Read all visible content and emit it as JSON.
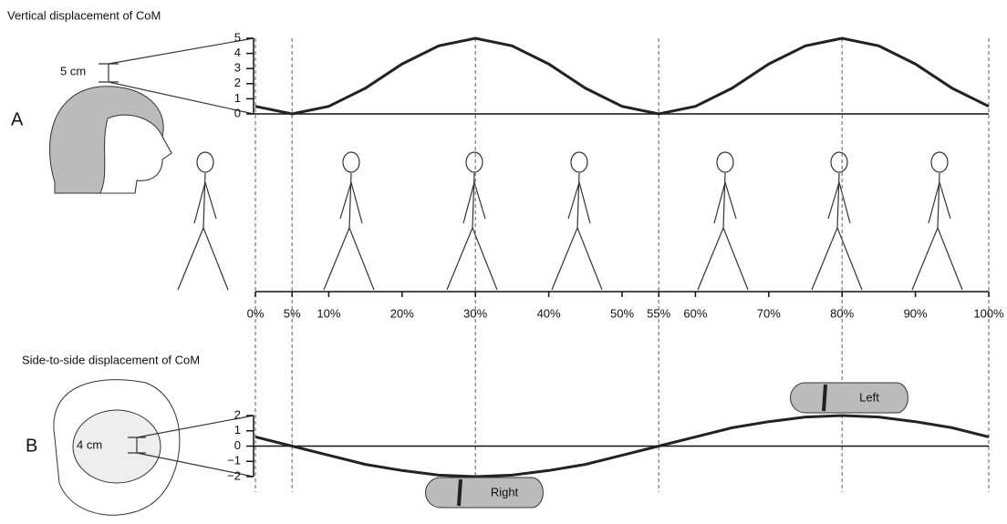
{
  "chart_data": [
    {
      "type": "line",
      "title": "Vertical displacement of CoM",
      "panel": "A",
      "scale_label": "5 cm",
      "x": [
        0,
        5,
        10,
        15,
        20,
        25,
        30,
        35,
        40,
        45,
        50,
        55,
        60,
        65,
        70,
        75,
        80,
        85,
        90,
        95,
        100
      ],
      "values": [
        0.5,
        0,
        0.5,
        1.7,
        3.3,
        4.5,
        5,
        4.5,
        3.3,
        1.7,
        0.5,
        0,
        0.5,
        1.7,
        3.3,
        4.5,
        5,
        4.5,
        3.3,
        1.7,
        0.5
      ],
      "color": "#222222",
      "xlim": [
        0,
        100
      ],
      "xticks": [
        {
          "value": 0,
          "label": "0%"
        },
        {
          "value": 5,
          "label": "5%"
        },
        {
          "value": 10,
          "label": "10%"
        },
        {
          "value": 20,
          "label": "20%"
        },
        {
          "value": 30,
          "label": "30%"
        },
        {
          "value": 40,
          "label": "40%"
        },
        {
          "value": 50,
          "label": "50%"
        },
        {
          "value": 55,
          "label": "55%"
        },
        {
          "value": 60,
          "label": "60%"
        },
        {
          "value": 70,
          "label": "70%"
        },
        {
          "value": 80,
          "label": "80%"
        },
        {
          "value": 90,
          "label": "90%"
        },
        {
          "value": 100,
          "label": "100%"
        }
      ],
      "ylim": [
        0,
        5
      ],
      "yticks": [
        0,
        1,
        2,
        3,
        4,
        5
      ],
      "guide_lines": [
        0,
        5,
        30,
        55,
        80,
        100
      ]
    },
    {
      "type": "line",
      "title": "Side-to-side displacement of CoM",
      "panel": "B",
      "scale_label": "4 cm",
      "x": [
        0,
        5,
        10,
        15,
        20,
        25,
        30,
        35,
        40,
        45,
        50,
        55,
        60,
        65,
        70,
        75,
        80,
        85,
        90,
        95,
        100
      ],
      "values": [
        0.6,
        0,
        -0.6,
        -1.2,
        -1.6,
        -1.9,
        -2,
        -1.9,
        -1.6,
        -1.2,
        -0.6,
        0,
        0.6,
        1.2,
        1.6,
        1.9,
        2,
        1.9,
        1.6,
        1.2,
        0.6
      ],
      "color": "#222222",
      "xlim": [
        0,
        100
      ],
      "ylim": [
        -2,
        2
      ],
      "yticks": [
        {
          "value": 2,
          "label": "2"
        },
        {
          "value": 1,
          "label": "1"
        },
        {
          "value": 0,
          "label": "0"
        },
        {
          "value": -1,
          "label": "−1"
        },
        {
          "value": -2,
          "label": "−2"
        }
      ],
      "footprints": [
        "Left",
        "Right"
      ]
    }
  ]
}
